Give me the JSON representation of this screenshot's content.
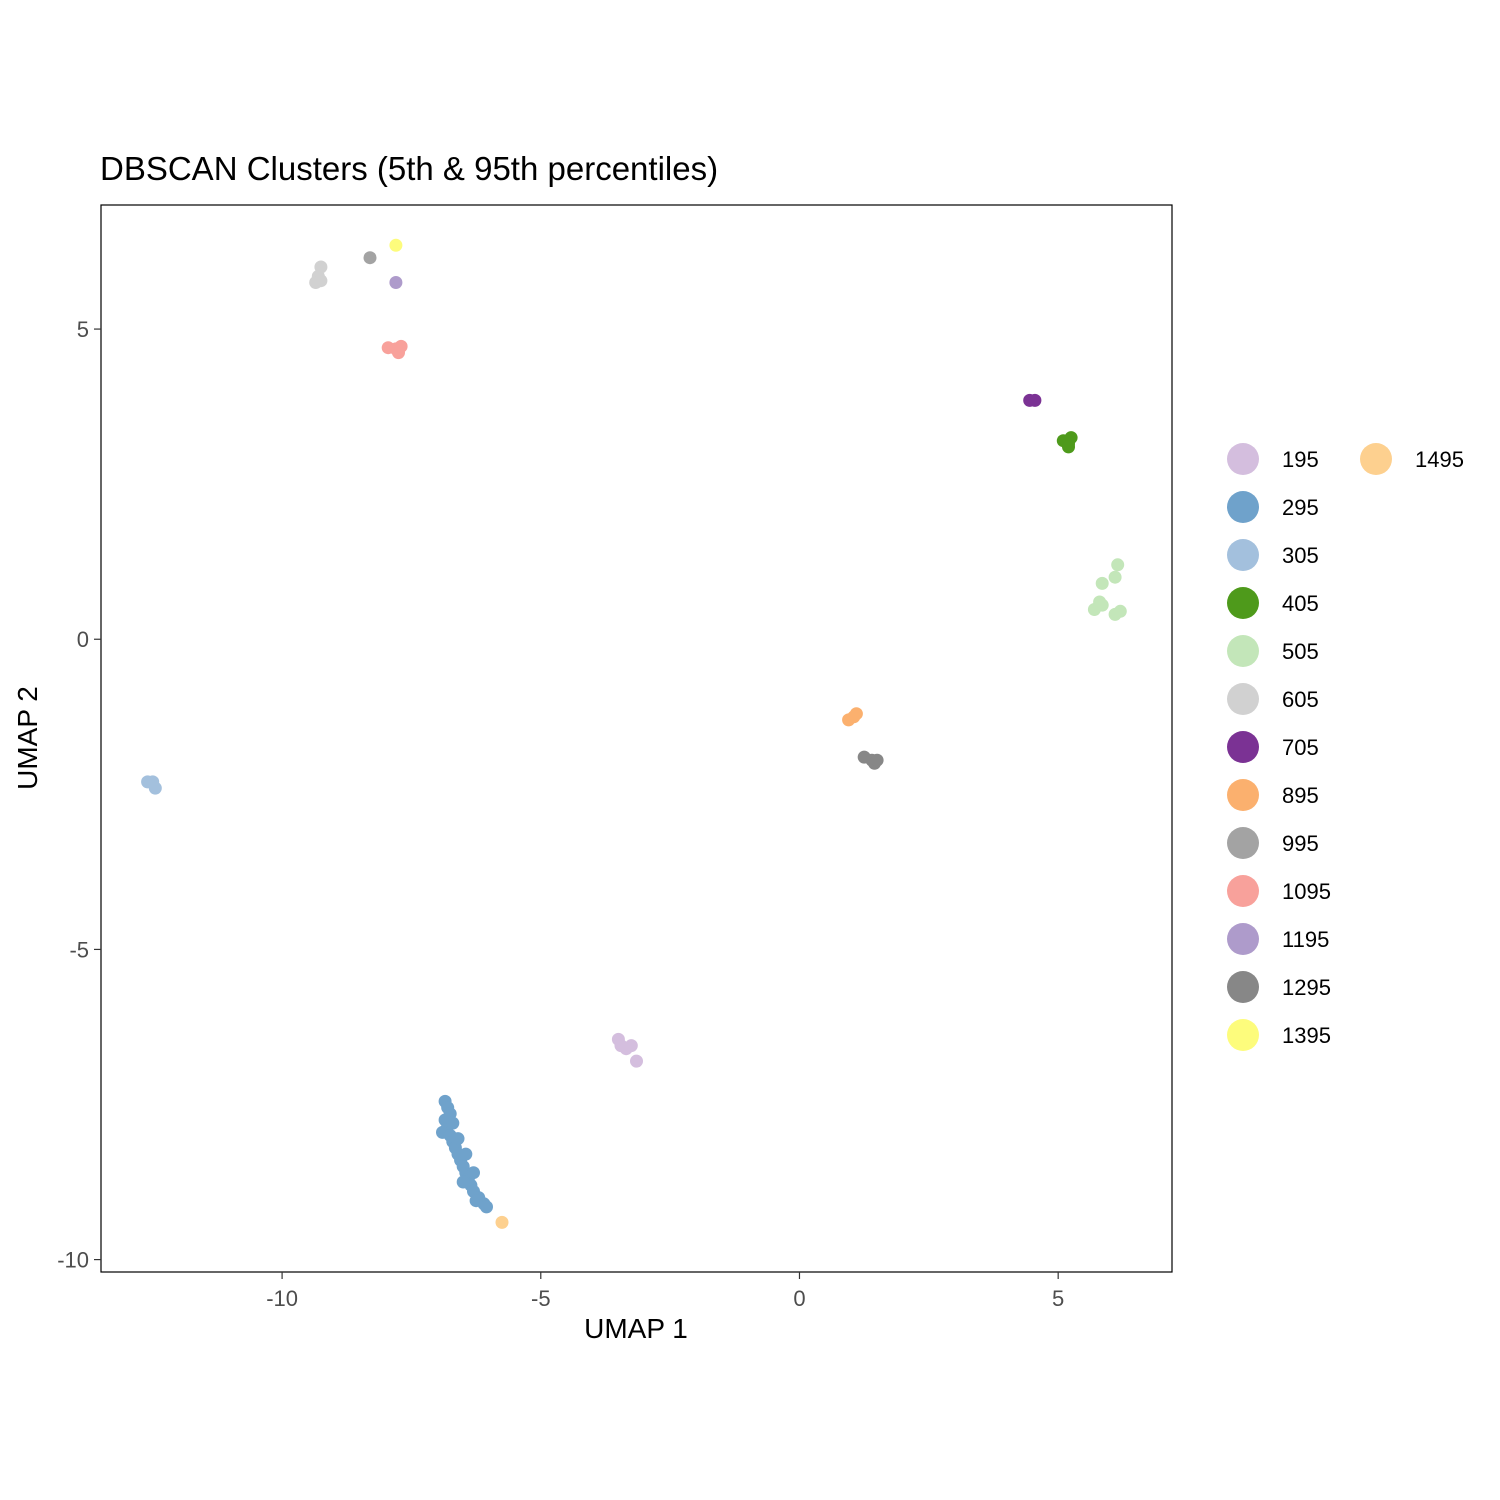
{
  "chart_data": {
    "type": "scatter",
    "title": "DBSCAN Clusters (5th & 95th percentiles)",
    "xlabel": "UMAP 1",
    "ylabel": "UMAP 2",
    "xlim": [
      -13.5,
      7.2
    ],
    "ylim": [
      -10.2,
      7.0
    ],
    "x_ticks": [
      -10,
      -5,
      0,
      5
    ],
    "x_tick_labels": [
      "-10",
      "-5",
      "0",
      "5"
    ],
    "y_ticks": [
      -10,
      -5,
      0,
      5
    ],
    "y_tick_labels": [
      "-10",
      "-5",
      "0",
      "5"
    ],
    "grid": false,
    "legend_position": "right",
    "series": [
      {
        "name": "195",
        "color": "#D4BEDE",
        "points": [
          [
            -3.5,
            -6.45
          ],
          [
            -3.45,
            -6.55
          ],
          [
            -3.35,
            -6.6
          ],
          [
            -3.25,
            -6.55
          ],
          [
            -3.15,
            -6.8
          ]
        ]
      },
      {
        "name": "295",
        "color": "#6FA2CB",
        "points": [
          [
            -6.85,
            -7.45
          ],
          [
            -6.8,
            -7.55
          ],
          [
            -6.75,
            -7.65
          ],
          [
            -6.85,
            -7.75
          ],
          [
            -6.8,
            -7.85
          ],
          [
            -6.9,
            -7.95
          ],
          [
            -6.75,
            -8.0
          ],
          [
            -6.7,
            -8.1
          ],
          [
            -6.65,
            -8.2
          ],
          [
            -6.6,
            -8.3
          ],
          [
            -6.55,
            -8.4
          ],
          [
            -6.5,
            -8.5
          ],
          [
            -6.45,
            -8.6
          ],
          [
            -6.4,
            -8.7
          ],
          [
            -6.35,
            -8.8
          ],
          [
            -6.3,
            -8.9
          ],
          [
            -6.2,
            -9.0
          ],
          [
            -6.1,
            -9.1
          ],
          [
            -6.05,
            -9.15
          ],
          [
            -6.3,
            -8.6
          ],
          [
            -6.45,
            -8.3
          ],
          [
            -6.6,
            -8.05
          ],
          [
            -6.7,
            -7.8
          ],
          [
            -6.5,
            -8.75
          ],
          [
            -6.25,
            -9.05
          ]
        ]
      },
      {
        "name": "305",
        "color": "#A3C0DD",
        "points": [
          [
            -12.6,
            -2.3
          ],
          [
            -12.5,
            -2.3
          ],
          [
            -12.45,
            -2.4
          ]
        ]
      },
      {
        "name": "405",
        "color": "#4E9A1B",
        "points": [
          [
            5.1,
            3.2
          ],
          [
            5.2,
            3.15
          ],
          [
            5.25,
            3.25
          ],
          [
            5.2,
            3.1
          ]
        ]
      },
      {
        "name": "505",
        "color": "#C3E6B9",
        "points": [
          [
            6.15,
            1.2
          ],
          [
            6.1,
            1.0
          ],
          [
            5.85,
            0.9
          ],
          [
            5.8,
            0.6
          ],
          [
            5.85,
            0.55
          ],
          [
            5.7,
            0.48
          ],
          [
            6.1,
            0.4
          ],
          [
            6.2,
            0.45
          ]
        ]
      },
      {
        "name": "605",
        "color": "#D1D1D1",
        "points": [
          [
            -9.25,
            6.0
          ],
          [
            -9.3,
            5.85
          ],
          [
            -9.35,
            5.75
          ],
          [
            -9.25,
            5.78
          ]
        ]
      },
      {
        "name": "705",
        "color": "#7B3294",
        "points": [
          [
            4.45,
            3.85
          ],
          [
            4.55,
            3.85
          ]
        ]
      },
      {
        "name": "895",
        "color": "#FBB06E",
        "points": [
          [
            1.05,
            -1.25
          ],
          [
            0.95,
            -1.3
          ],
          [
            1.1,
            -1.2
          ]
        ]
      },
      {
        "name": "995",
        "color": "#A3A3A3",
        "points": [
          [
            -8.3,
            6.15
          ]
        ]
      },
      {
        "name": "1095",
        "color": "#F8A19B",
        "points": [
          [
            -7.95,
            4.7
          ],
          [
            -7.8,
            4.68
          ],
          [
            -7.75,
            4.62
          ],
          [
            -7.7,
            4.72
          ]
        ]
      },
      {
        "name": "1195",
        "color": "#AE9BCB",
        "points": [
          [
            -7.8,
            5.75
          ]
        ]
      },
      {
        "name": "1295",
        "color": "#878787",
        "points": [
          [
            1.25,
            -1.9
          ],
          [
            1.4,
            -1.95
          ],
          [
            1.45,
            -2.0
          ],
          [
            1.5,
            -1.95
          ]
        ]
      },
      {
        "name": "1395",
        "color": "#FDFC7C",
        "points": [
          [
            -7.8,
            6.35
          ]
        ]
      },
      {
        "name": "1495",
        "color": "#FDD08F",
        "points": [
          [
            -5.75,
            -9.4
          ]
        ]
      }
    ]
  }
}
